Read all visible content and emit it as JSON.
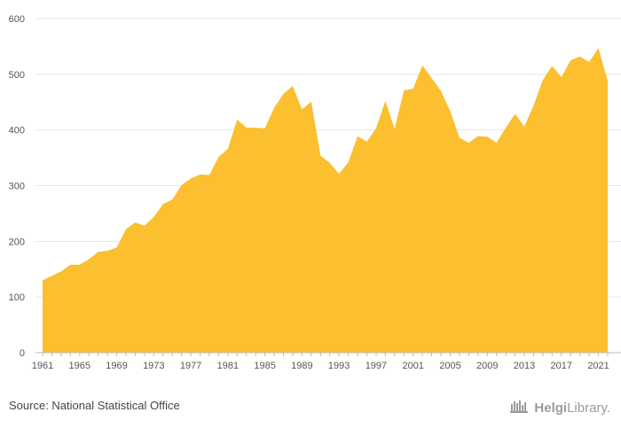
{
  "chart_data": {
    "type": "area",
    "title": "",
    "xlabel": "",
    "ylabel": "",
    "xlim": [
      1961,
      2022
    ],
    "ylim": [
      0,
      600
    ],
    "y_ticks": [
      "0",
      "100",
      "200",
      "300",
      "400",
      "500",
      "600"
    ],
    "x_ticks": [
      "1961",
      "1965",
      "1969",
      "1973",
      "1977",
      "1981",
      "1985",
      "1989",
      "1993",
      "1997",
      "2001",
      "2005",
      "2009",
      "2013",
      "2017",
      "2021"
    ],
    "grid": "horizontal",
    "color": "#FBBF2F",
    "x": [
      1961,
      1962,
      1963,
      1964,
      1965,
      1966,
      1967,
      1968,
      1969,
      1970,
      1971,
      1972,
      1973,
      1974,
      1975,
      1976,
      1977,
      1978,
      1979,
      1980,
      1981,
      1982,
      1983,
      1984,
      1985,
      1986,
      1987,
      1988,
      1989,
      1990,
      1991,
      1992,
      1993,
      1994,
      1995,
      1996,
      1997,
      1998,
      1999,
      2000,
      2001,
      2002,
      2003,
      2004,
      2005,
      2006,
      2007,
      2008,
      2009,
      2010,
      2011,
      2012,
      2013,
      2014,
      2015,
      2016,
      2017,
      2018,
      2019,
      2020,
      2021,
      2022
    ],
    "values": [
      130,
      138,
      146,
      158,
      158,
      168,
      181,
      183,
      189,
      222,
      234,
      228,
      244,
      267,
      275,
      301,
      313,
      320,
      319,
      352,
      366,
      419,
      404,
      404,
      403,
      440,
      465,
      479,
      437,
      451,
      354,
      341,
      321,
      342,
      389,
      379,
      403,
      452,
      402,
      471,
      474,
      516,
      493,
      470,
      434,
      386,
      377,
      389,
      388,
      377,
      404,
      429,
      406,
      444,
      490,
      515,
      495,
      525,
      532,
      522,
      547,
      488
    ]
  },
  "footer": {
    "source": "Source: National Statistical Office",
    "brand_part1": "Helgi",
    "brand_part2": "Library."
  }
}
